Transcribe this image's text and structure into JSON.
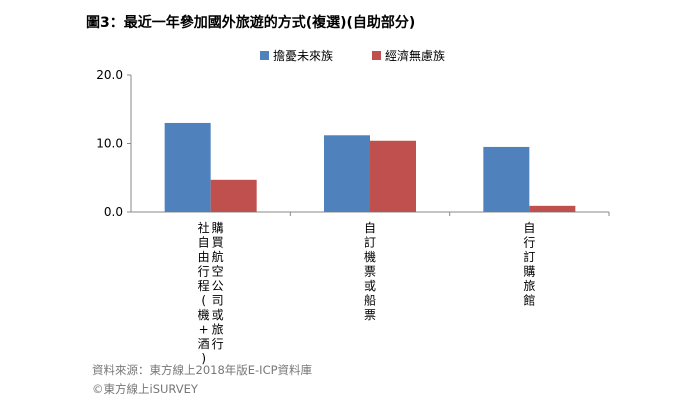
{
  "chart_data": {
    "type": "bar",
    "title": "圖3：最近一年參加國外旅遊的方式(複選)(自助部分)",
    "categories": [
      [
        "購買航空公司或旅行",
        "社自由行程(機+酒)"
      ],
      [
        "自訂機票或船票"
      ],
      [
        "自行訂購旅館"
      ]
    ],
    "series": [
      {
        "name": "擔憂未來族",
        "color": "#4f81bd",
        "values": [
          13.0,
          11.2,
          9.5
        ]
      },
      {
        "name": "經濟無慮族",
        "color": "#c0504d",
        "values": [
          4.7,
          10.4,
          0.9
        ]
      }
    ],
    "ylim": [
      0,
      20
    ],
    "yticks": [
      "0.0",
      "10.0",
      "20.0"
    ],
    "ytick_values": [
      0,
      10,
      20
    ],
    "grid": false,
    "legend_position": "top"
  },
  "source": {
    "line1": "資料來源：東方線上2018年版E-ICP資料庫",
    "line2": "©東方線上iSURVEY"
  }
}
